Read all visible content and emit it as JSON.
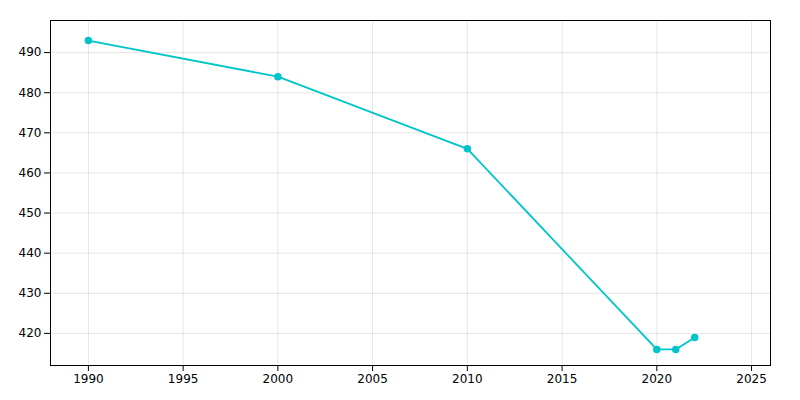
{
  "chart_data": {
    "type": "line",
    "x": [
      1990,
      2000,
      2010,
      2020,
      2021,
      2022
    ],
    "values": [
      493,
      484,
      466,
      416,
      416,
      419
    ],
    "color": "#00C5C8",
    "marker": "circle",
    "xlim": [
      1988,
      2026
    ],
    "ylim": [
      412,
      498
    ],
    "xticks": [
      1990,
      1995,
      2000,
      2005,
      2010,
      2015,
      2020,
      2025
    ],
    "yticks": [
      420,
      430,
      440,
      450,
      460,
      470,
      480,
      490
    ],
    "grid": true
  }
}
